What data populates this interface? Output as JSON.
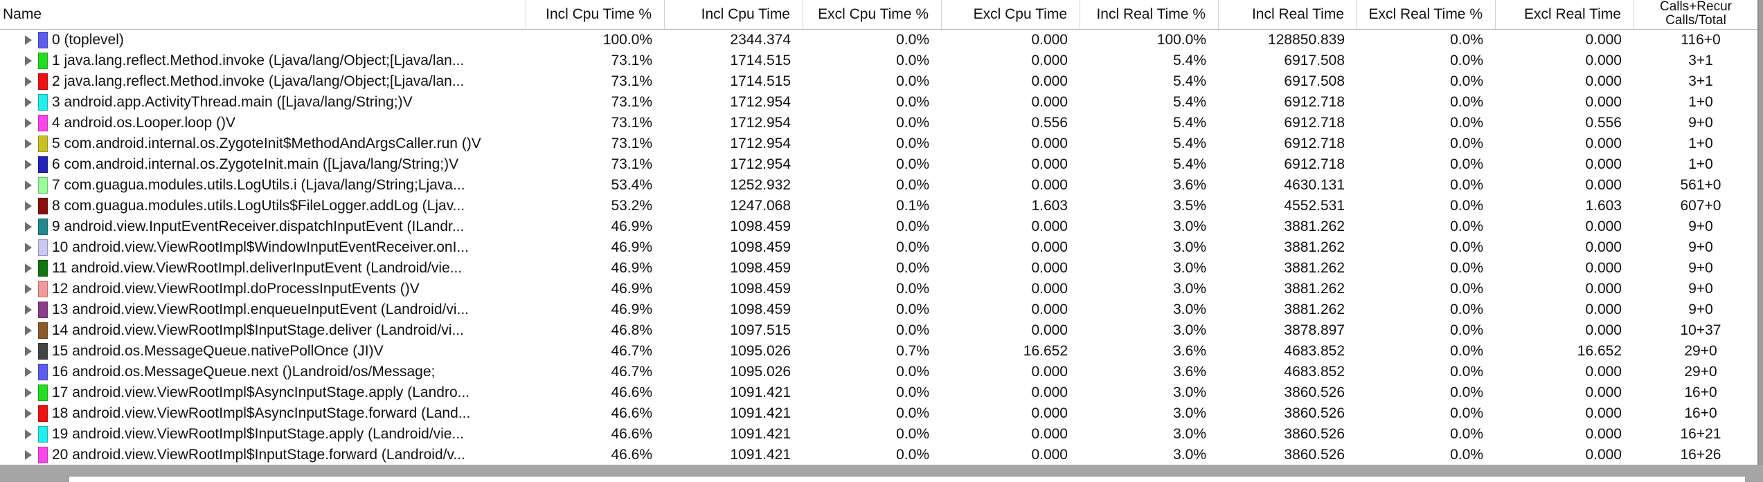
{
  "columns": [
    "Name",
    "Incl Cpu Time %",
    "Incl Cpu Time",
    "Excl Cpu Time %",
    "Excl Cpu Time",
    "Incl Real Time %",
    "Incl Real Time",
    "Excl Real Time %",
    "Excl Real Time",
    "Calls+Recur Calls/Total"
  ],
  "rows": [
    {
      "color": "#5c5cf0",
      "name": "0 (toplevel)",
      "incl_cpu_pct": "100.0%",
      "incl_cpu": "2344.374",
      "excl_cpu_pct": "0.0%",
      "excl_cpu": "0.000",
      "incl_real_pct": "100.0%",
      "incl_real": "128850.839",
      "excl_real_pct": "0.0%",
      "excl_real": "0.000",
      "calls": "116+0"
    },
    {
      "color": "#22dd22",
      "name": "1 java.lang.reflect.Method.invoke (Ljava/lang/Object;[Ljava/lan...",
      "incl_cpu_pct": "73.1%",
      "incl_cpu": "1714.515",
      "excl_cpu_pct": "0.0%",
      "excl_cpu": "0.000",
      "incl_real_pct": "5.4%",
      "incl_real": "6917.508",
      "excl_real_pct": "0.0%",
      "excl_real": "0.000",
      "calls": "3+1"
    },
    {
      "color": "#ee1111",
      "name": "2 java.lang.reflect.Method.invoke (Ljava/lang/Object;[Ljava/lan...",
      "incl_cpu_pct": "73.1%",
      "incl_cpu": "1714.515",
      "excl_cpu_pct": "0.0%",
      "excl_cpu": "0.000",
      "incl_real_pct": "5.4%",
      "incl_real": "6917.508",
      "excl_real_pct": "0.0%",
      "excl_real": "0.000",
      "calls": "3+1"
    },
    {
      "color": "#22eeee",
      "name": "3 android.app.ActivityThread.main ([Ljava/lang/String;)V",
      "incl_cpu_pct": "73.1%",
      "incl_cpu": "1712.954",
      "excl_cpu_pct": "0.0%",
      "excl_cpu": "0.000",
      "incl_real_pct": "5.4%",
      "incl_real": "6912.718",
      "excl_real_pct": "0.0%",
      "excl_real": "0.000",
      "calls": "1+0"
    },
    {
      "color": "#ff44ee",
      "name": "4 android.os.Looper.loop ()V",
      "incl_cpu_pct": "73.1%",
      "incl_cpu": "1712.954",
      "excl_cpu_pct": "0.0%",
      "excl_cpu": "0.556",
      "incl_real_pct": "5.4%",
      "incl_real": "6912.718",
      "excl_real_pct": "0.0%",
      "excl_real": "0.556",
      "calls": "9+0"
    },
    {
      "color": "#c8c022",
      "name": "5 com.android.internal.os.ZygoteInit$MethodAndArgsCaller.run ()V",
      "incl_cpu_pct": "73.1%",
      "incl_cpu": "1712.954",
      "excl_cpu_pct": "0.0%",
      "excl_cpu": "0.000",
      "incl_real_pct": "5.4%",
      "incl_real": "6912.718",
      "excl_real_pct": "0.0%",
      "excl_real": "0.000",
      "calls": "1+0"
    },
    {
      "color": "#2222bb",
      "name": "6 com.android.internal.os.ZygoteInit.main ([Ljava/lang/String;)V",
      "incl_cpu_pct": "73.1%",
      "incl_cpu": "1712.954",
      "excl_cpu_pct": "0.0%",
      "excl_cpu": "0.000",
      "incl_real_pct": "5.4%",
      "incl_real": "6912.718",
      "excl_real_pct": "0.0%",
      "excl_real": "0.000",
      "calls": "1+0"
    },
    {
      "color": "#99ff99",
      "name": "7 com.guagua.modules.utils.LogUtils.i (Ljava/lang/String;Ljava...",
      "incl_cpu_pct": "53.4%",
      "incl_cpu": "1252.932",
      "excl_cpu_pct": "0.0%",
      "excl_cpu": "0.000",
      "incl_real_pct": "3.6%",
      "incl_real": "4630.131",
      "excl_real_pct": "0.0%",
      "excl_real": "0.000",
      "calls": "561+0"
    },
    {
      "color": "#8b0e0e",
      "name": "8 com.guagua.modules.utils.LogUtils$FileLogger.addLog (Ljav...",
      "incl_cpu_pct": "53.2%",
      "incl_cpu": "1247.068",
      "excl_cpu_pct": "0.1%",
      "excl_cpu": "1.603",
      "incl_real_pct": "3.5%",
      "incl_real": "4552.531",
      "excl_real_pct": "0.0%",
      "excl_real": "1.603",
      "calls": "607+0"
    },
    {
      "color": "#228b8b",
      "name": "9 android.view.InputEventReceiver.dispatchInputEvent (ILandr...",
      "incl_cpu_pct": "46.9%",
      "incl_cpu": "1098.459",
      "excl_cpu_pct": "0.0%",
      "excl_cpu": "0.000",
      "incl_real_pct": "3.0%",
      "incl_real": "3881.262",
      "excl_real_pct": "0.0%",
      "excl_real": "0.000",
      "calls": "9+0"
    },
    {
      "color": "#c8c8f2",
      "name": "10 android.view.ViewRootImpl$WindowInputEventReceiver.onI...",
      "incl_cpu_pct": "46.9%",
      "incl_cpu": "1098.459",
      "excl_cpu_pct": "0.0%",
      "excl_cpu": "0.000",
      "incl_real_pct": "3.0%",
      "incl_real": "3881.262",
      "excl_real_pct": "0.0%",
      "excl_real": "0.000",
      "calls": "9+0"
    },
    {
      "color": "#117711",
      "name": "11 android.view.ViewRootImpl.deliverInputEvent (Landroid/vie...",
      "incl_cpu_pct": "46.9%",
      "incl_cpu": "1098.459",
      "excl_cpu_pct": "0.0%",
      "excl_cpu": "0.000",
      "incl_real_pct": "3.0%",
      "incl_real": "3881.262",
      "excl_real_pct": "0.0%",
      "excl_real": "0.000",
      "calls": "9+0"
    },
    {
      "color": "#f29a9a",
      "name": "12 android.view.ViewRootImpl.doProcessInputEvents ()V",
      "incl_cpu_pct": "46.9%",
      "incl_cpu": "1098.459",
      "excl_cpu_pct": "0.0%",
      "excl_cpu": "0.000",
      "incl_real_pct": "3.0%",
      "incl_real": "3881.262",
      "excl_real_pct": "0.0%",
      "excl_real": "0.000",
      "calls": "9+0"
    },
    {
      "color": "#8b3c8b",
      "name": "13 android.view.ViewRootImpl.enqueueInputEvent (Landroid/vi...",
      "incl_cpu_pct": "46.9%",
      "incl_cpu": "1098.459",
      "excl_cpu_pct": "0.0%",
      "excl_cpu": "0.000",
      "incl_real_pct": "3.0%",
      "incl_real": "3881.262",
      "excl_real_pct": "0.0%",
      "excl_real": "0.000",
      "calls": "9+0"
    },
    {
      "color": "#8b5a2b",
      "name": "14 android.view.ViewRootImpl$InputStage.deliver (Landroid/vi...",
      "incl_cpu_pct": "46.8%",
      "incl_cpu": "1097.515",
      "excl_cpu_pct": "0.0%",
      "excl_cpu": "0.000",
      "incl_real_pct": "3.0%",
      "incl_real": "3878.897",
      "excl_real_pct": "0.0%",
      "excl_real": "0.000",
      "calls": "10+37"
    },
    {
      "color": "#444444",
      "name": "15 android.os.MessageQueue.nativePollOnce (JI)V",
      "incl_cpu_pct": "46.7%",
      "incl_cpu": "1095.026",
      "excl_cpu_pct": "0.7%",
      "excl_cpu": "16.652",
      "incl_real_pct": "3.6%",
      "incl_real": "4683.852",
      "excl_real_pct": "0.0%",
      "excl_real": "16.652",
      "calls": "29+0"
    },
    {
      "color": "#5c5cf0",
      "name": "16 android.os.MessageQueue.next ()Landroid/os/Message;",
      "incl_cpu_pct": "46.7%",
      "incl_cpu": "1095.026",
      "excl_cpu_pct": "0.0%",
      "excl_cpu": "0.000",
      "incl_real_pct": "3.6%",
      "incl_real": "4683.852",
      "excl_real_pct": "0.0%",
      "excl_real": "0.000",
      "calls": "29+0"
    },
    {
      "color": "#22dd22",
      "name": "17 android.view.ViewRootImpl$AsyncInputStage.apply (Landro...",
      "incl_cpu_pct": "46.6%",
      "incl_cpu": "1091.421",
      "excl_cpu_pct": "0.0%",
      "excl_cpu": "0.000",
      "incl_real_pct": "3.0%",
      "incl_real": "3860.526",
      "excl_real_pct": "0.0%",
      "excl_real": "0.000",
      "calls": "16+0"
    },
    {
      "color": "#ee1111",
      "name": "18 android.view.ViewRootImpl$AsyncInputStage.forward (Land...",
      "incl_cpu_pct": "46.6%",
      "incl_cpu": "1091.421",
      "excl_cpu_pct": "0.0%",
      "excl_cpu": "0.000",
      "incl_real_pct": "3.0%",
      "incl_real": "3860.526",
      "excl_real_pct": "0.0%",
      "excl_real": "0.000",
      "calls": "16+0"
    },
    {
      "color": "#22eeee",
      "name": "19 android.view.ViewRootImpl$InputStage.apply (Landroid/vie...",
      "incl_cpu_pct": "46.6%",
      "incl_cpu": "1091.421",
      "excl_cpu_pct": "0.0%",
      "excl_cpu": "0.000",
      "incl_real_pct": "3.0%",
      "incl_real": "3860.526",
      "excl_real_pct": "0.0%",
      "excl_real": "0.000",
      "calls": "16+21"
    },
    {
      "color": "#ff44ee",
      "name": "20 android.view.ViewRootImpl$InputStage.forward (Landroid/v...",
      "incl_cpu_pct": "46.6%",
      "incl_cpu": "1091.421",
      "excl_cpu_pct": "0.0%",
      "excl_cpu": "0.000",
      "incl_real_pct": "3.0%",
      "incl_real": "3860.526",
      "excl_real_pct": "0.0%",
      "excl_real": "0.000",
      "calls": "16+26"
    }
  ]
}
